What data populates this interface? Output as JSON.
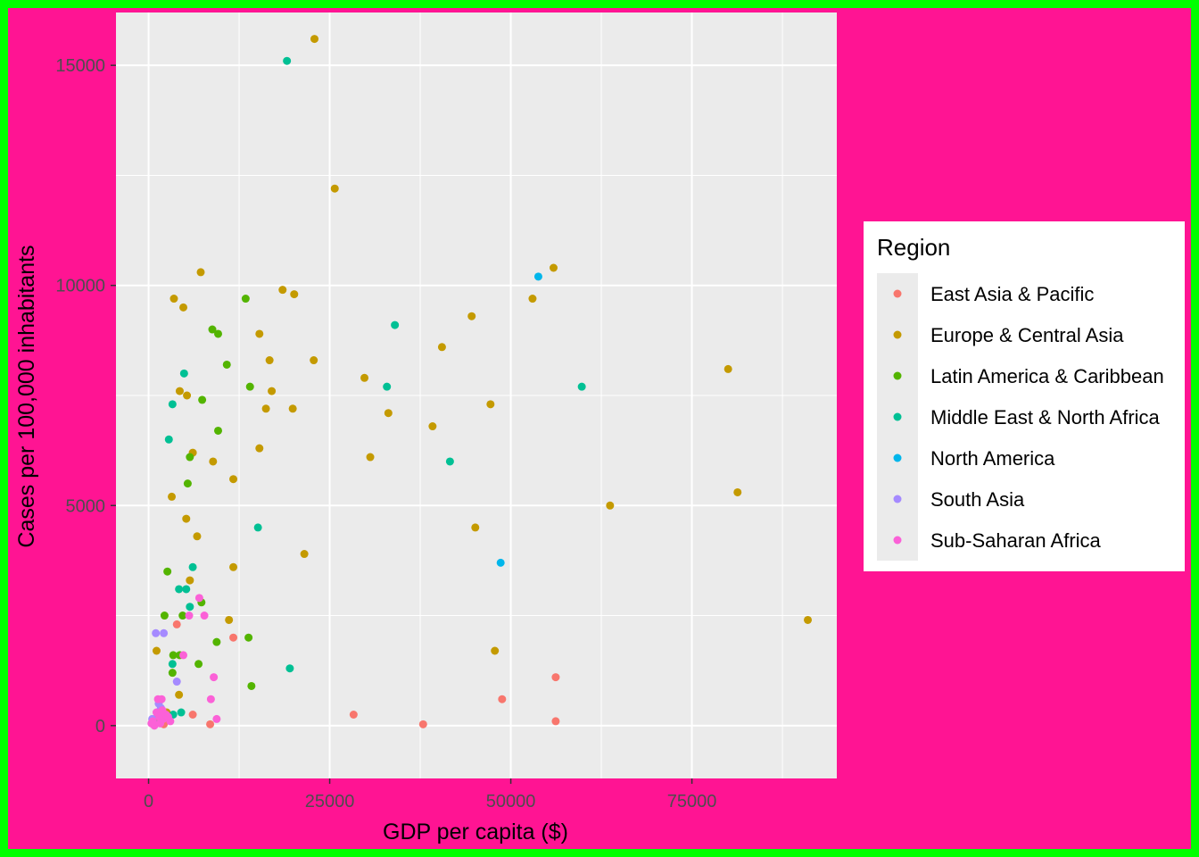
{
  "chart_data": {
    "type": "scatter",
    "title": "",
    "xlabel": "GDP per capita ($)",
    "ylabel": "Cases per 100,000 inhabitants",
    "xlim": [
      -4500,
      95000
    ],
    "ylim": [
      -1200,
      16200
    ],
    "x_ticks": [
      0,
      25000,
      50000,
      75000
    ],
    "x_tick_labels": [
      "0",
      "25000",
      "50000",
      "75000"
    ],
    "y_ticks": [
      0,
      5000,
      10000,
      15000
    ],
    "y_tick_labels": [
      "0",
      "5000",
      "10000",
      "15000"
    ],
    "grid": true,
    "legend_position": "right",
    "legend_title": "Region",
    "series": [
      {
        "name": "East Asia & Pacific",
        "color": "#F8766D",
        "points": [
          [
            11700,
            2000
          ],
          [
            28300,
            250
          ],
          [
            37900,
            30
          ],
          [
            48800,
            600
          ],
          [
            56200,
            1100
          ],
          [
            56200,
            100
          ],
          [
            6100,
            250
          ],
          [
            8500,
            30
          ],
          [
            2100,
            30
          ],
          [
            1200,
            200
          ],
          [
            3900,
            2300
          ]
        ]
      },
      {
        "name": "Europe & Central Asia",
        "color": "#C49A00",
        "points": [
          [
            22900,
            15600
          ],
          [
            25700,
            12200
          ],
          [
            7200,
            10300
          ],
          [
            3500,
            9700
          ],
          [
            4800,
            9500
          ],
          [
            18500,
            9900
          ],
          [
            20100,
            9800
          ],
          [
            55900,
            10400
          ],
          [
            53000,
            9700
          ],
          [
            44600,
            9300
          ],
          [
            15300,
            8900
          ],
          [
            16700,
            8300
          ],
          [
            22800,
            8300
          ],
          [
            40500,
            8600
          ],
          [
            80000,
            8100
          ],
          [
            29800,
            7900
          ],
          [
            4300,
            7600
          ],
          [
            5300,
            7500
          ],
          [
            17000,
            7600
          ],
          [
            16200,
            7200
          ],
          [
            19900,
            7200
          ],
          [
            33100,
            7100
          ],
          [
            47200,
            7300
          ],
          [
            39200,
            6800
          ],
          [
            15300,
            6300
          ],
          [
            30600,
            6100
          ],
          [
            6100,
            6200
          ],
          [
            8900,
            6000
          ],
          [
            11700,
            5600
          ],
          [
            3200,
            5200
          ],
          [
            81300,
            5300
          ],
          [
            63700,
            5000
          ],
          [
            5200,
            4700
          ],
          [
            45100,
            4500
          ],
          [
            6700,
            4300
          ],
          [
            21500,
            3900
          ],
          [
            11700,
            3600
          ],
          [
            5700,
            3300
          ],
          [
            11100,
            2400
          ],
          [
            91000,
            2400
          ],
          [
            47800,
            1700
          ],
          [
            1100,
            1700
          ],
          [
            4200,
            700
          ],
          [
            2500,
            300
          ]
        ]
      },
      {
        "name": "Latin America & Caribbean",
        "color": "#53B400",
        "points": [
          [
            13400,
            9700
          ],
          [
            8800,
            9000
          ],
          [
            9600,
            8900
          ],
          [
            10800,
            8200
          ],
          [
            14000,
            7700
          ],
          [
            7400,
            7400
          ],
          [
            9600,
            6700
          ],
          [
            5700,
            6100
          ],
          [
            5400,
            5500
          ],
          [
            2600,
            3500
          ],
          [
            7300,
            2800
          ],
          [
            2200,
            2500
          ],
          [
            4700,
            2500
          ],
          [
            9400,
            1900
          ],
          [
            13800,
            2000
          ],
          [
            3400,
            1600
          ],
          [
            4300,
            1600
          ],
          [
            6900,
            1400
          ],
          [
            3300,
            1200
          ],
          [
            14200,
            900
          ]
        ]
      },
      {
        "name": "Middle East & North Africa",
        "color": "#00C094",
        "points": [
          [
            19100,
            15100
          ],
          [
            34000,
            9100
          ],
          [
            4900,
            8000
          ],
          [
            3300,
            7300
          ],
          [
            32900,
            7700
          ],
          [
            59800,
            7700
          ],
          [
            2800,
            6500
          ],
          [
            41600,
            6000
          ],
          [
            15100,
            4500
          ],
          [
            6100,
            3600
          ],
          [
            4200,
            3100
          ],
          [
            5200,
            3100
          ],
          [
            5700,
            2700
          ],
          [
            3300,
            1400
          ],
          [
            19500,
            1300
          ],
          [
            3400,
            250
          ],
          [
            4500,
            300
          ],
          [
            800,
            50
          ]
        ]
      },
      {
        "name": "North America",
        "color": "#00B6EB",
        "points": [
          [
            53800,
            10200
          ],
          [
            48600,
            3700
          ]
        ]
      },
      {
        "name": "South Asia",
        "color": "#A58AFF",
        "points": [
          [
            1000,
            2100
          ],
          [
            2100,
            2100
          ],
          [
            3900,
            1000
          ],
          [
            1400,
            500
          ],
          [
            500,
            150
          ],
          [
            1700,
            400
          ]
        ]
      },
      {
        "name": "Sub-Saharan Africa",
        "color": "#FB61D7",
        "points": [
          [
            7000,
            2900
          ],
          [
            7700,
            2500
          ],
          [
            5600,
            2500
          ],
          [
            4800,
            1600
          ],
          [
            9000,
            1100
          ],
          [
            8600,
            600
          ],
          [
            9400,
            150
          ],
          [
            1300,
            600
          ],
          [
            1800,
            600
          ],
          [
            600,
            100
          ],
          [
            800,
            0
          ],
          [
            1100,
            300
          ],
          [
            1500,
            200
          ],
          [
            2000,
            150
          ],
          [
            2400,
            250
          ],
          [
            3000,
            100
          ],
          [
            1600,
            50
          ],
          [
            400,
            50
          ],
          [
            2700,
            200
          ],
          [
            1900,
            350
          ]
        ]
      }
    ]
  }
}
